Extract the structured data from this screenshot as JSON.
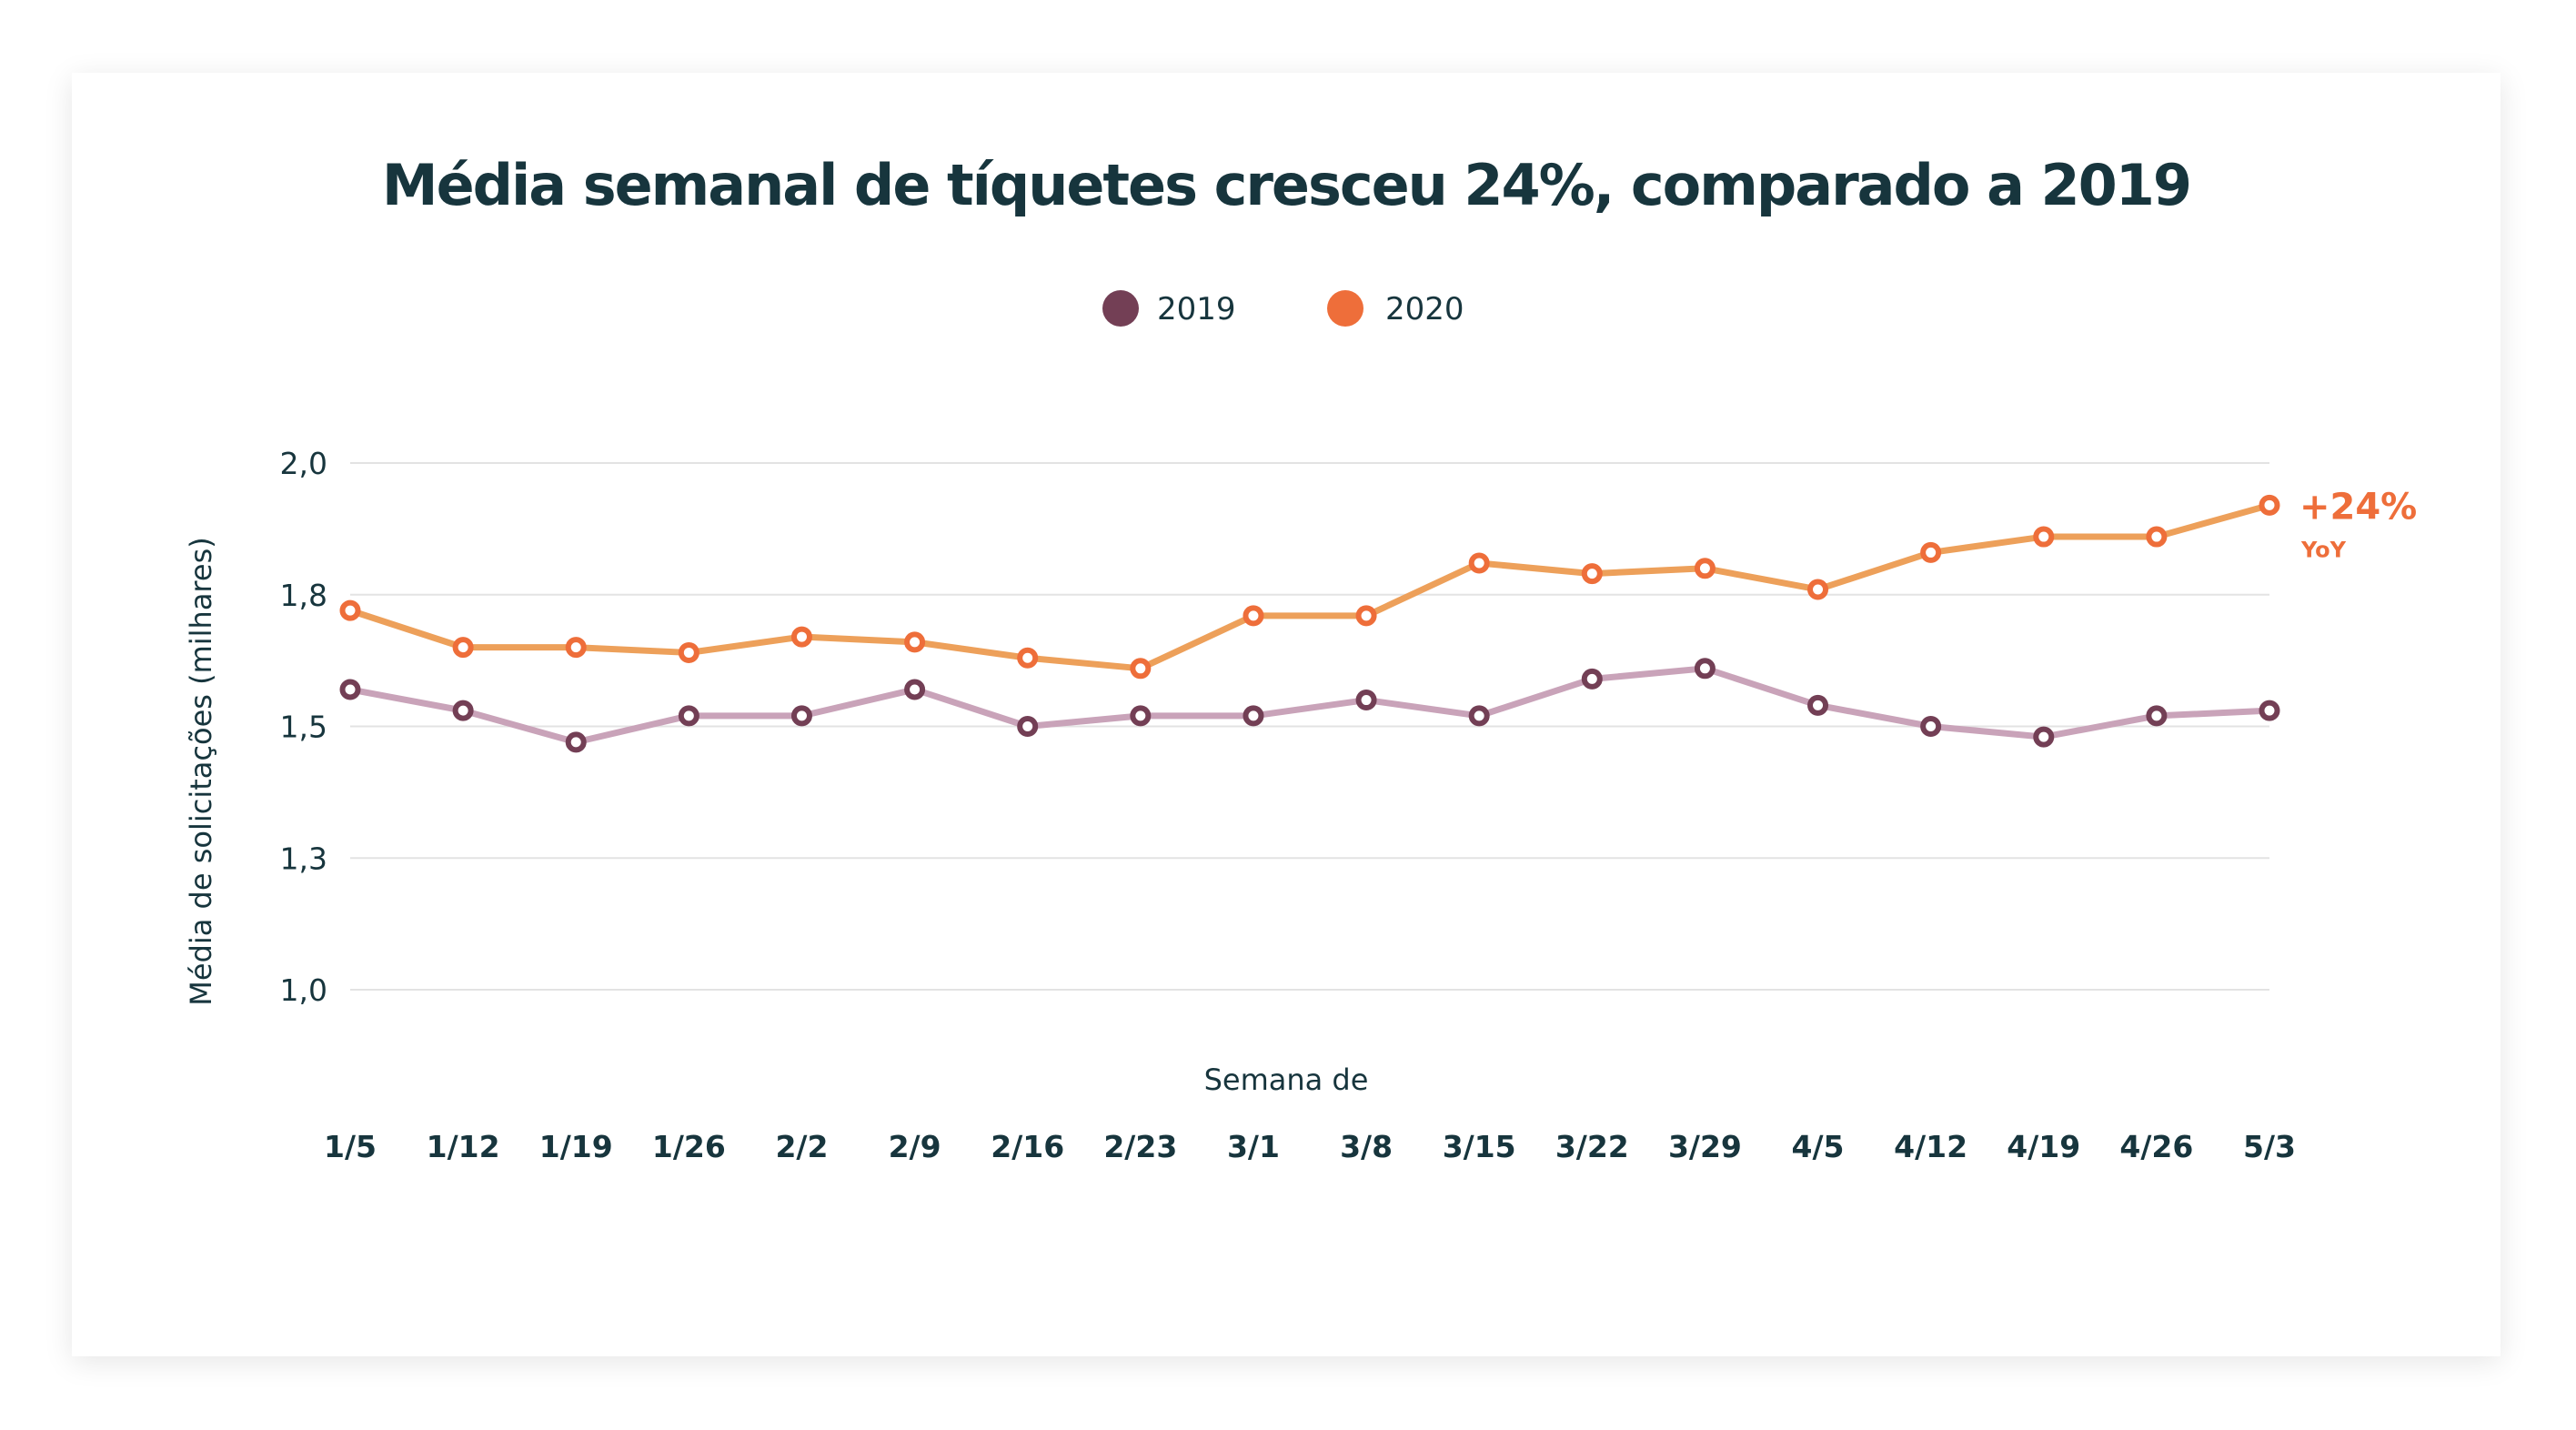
{
  "chart_data": {
    "type": "line",
    "title": "Média semanal de tíquetes cresceu 24%, comparado a 2019",
    "xlabel": "Semana de",
    "ylabel": "Média de solicitações (milhares)",
    "categories": [
      "1/5",
      "1/12",
      "1/19",
      "1/26",
      "2/2",
      "2/9",
      "2/16",
      "2/23",
      "3/1",
      "3/8",
      "3/15",
      "3/22",
      "3/29",
      "4/5",
      "4/12",
      "4/19",
      "4/26",
      "5/3"
    ],
    "y_ticks": [
      {
        "value": 2.0,
        "label": "2,0"
      },
      {
        "value": 1.75,
        "label": "1,8"
      },
      {
        "value": 1.5,
        "label": "1,5"
      },
      {
        "value": 1.25,
        "label": "1,3"
      },
      {
        "value": 1.0,
        "label": "1,0"
      }
    ],
    "ylim": [
      1.0,
      2.0
    ],
    "grid": true,
    "legend_position": "top-center",
    "series": [
      {
        "name": "2019",
        "line_color": "#c9a3b9",
        "marker_color": "#733f55",
        "values": [
          1.57,
          1.53,
          1.47,
          1.52,
          1.52,
          1.57,
          1.5,
          1.52,
          1.52,
          1.55,
          1.52,
          1.59,
          1.61,
          1.54,
          1.5,
          1.48,
          1.52,
          1.53
        ]
      },
      {
        "name": "2020",
        "line_color": "#eda05a",
        "marker_color": "#ee6e3a",
        "values": [
          1.72,
          1.65,
          1.65,
          1.64,
          1.67,
          1.66,
          1.63,
          1.61,
          1.71,
          1.71,
          1.81,
          1.79,
          1.8,
          1.76,
          1.83,
          1.86,
          1.86,
          1.92
        ]
      }
    ],
    "annotations": [
      {
        "series": "2020",
        "text": "+24%",
        "subtext": "YoY",
        "color": "#ee6e3a"
      }
    ]
  },
  "legend": {
    "items": [
      {
        "label": "2019",
        "color": "#733f55"
      },
      {
        "label": "2020",
        "color": "#ee6e3a"
      }
    ]
  }
}
